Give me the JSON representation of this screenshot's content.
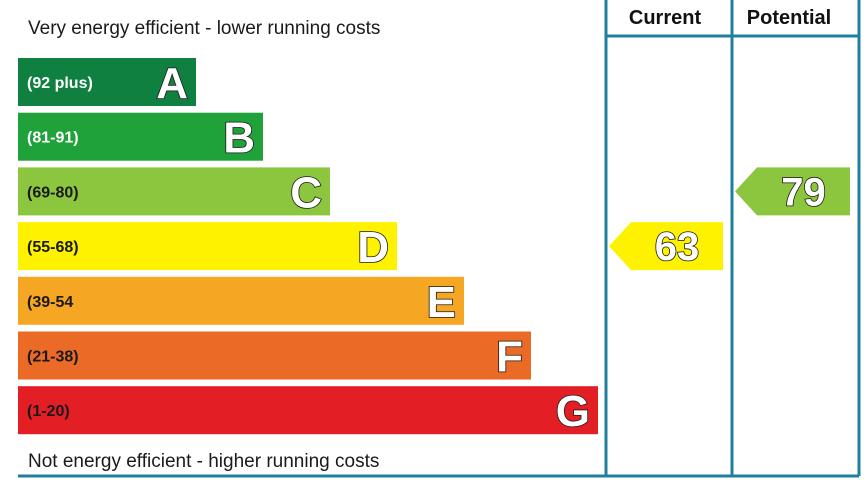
{
  "chart_data": {
    "type": "bar",
    "top_caption": "Very energy efficient - lower running costs",
    "bottom_caption": "Not energy efficient - higher running costs",
    "columns": {
      "current_label": "Current",
      "potential_label": "Potential"
    },
    "bands": [
      {
        "letter": "A",
        "range": "(92 plus)",
        "color": "#0f8040",
        "text_color": "#ffffff"
      },
      {
        "letter": "B",
        "range": "(81-91)",
        "color": "#1fa23a",
        "text_color": "#ffffff"
      },
      {
        "letter": "C",
        "range": "(69-80)",
        "color": "#8cc63f",
        "text_color": "#1a1a1a"
      },
      {
        "letter": "D",
        "range": "(55-68)",
        "color": "#fff200",
        "text_color": "#1a1a1a"
      },
      {
        "letter": "E",
        "range": "(39-54",
        "color": "#f5a623",
        "text_color": "#1a1a1a"
      },
      {
        "letter": "F",
        "range": "(21-38)",
        "color": "#eb6a26",
        "text_color": "#1a1a1a"
      },
      {
        "letter": "G",
        "range": "(1-20)",
        "color": "#e31e24",
        "text_color": "#1a1a1a"
      }
    ],
    "current": {
      "value": "63",
      "band": "D",
      "color": "#fff200"
    },
    "potential": {
      "value": "79",
      "band": "C",
      "color": "#8cc63f"
    },
    "border_color": "#1f7f9f"
  }
}
